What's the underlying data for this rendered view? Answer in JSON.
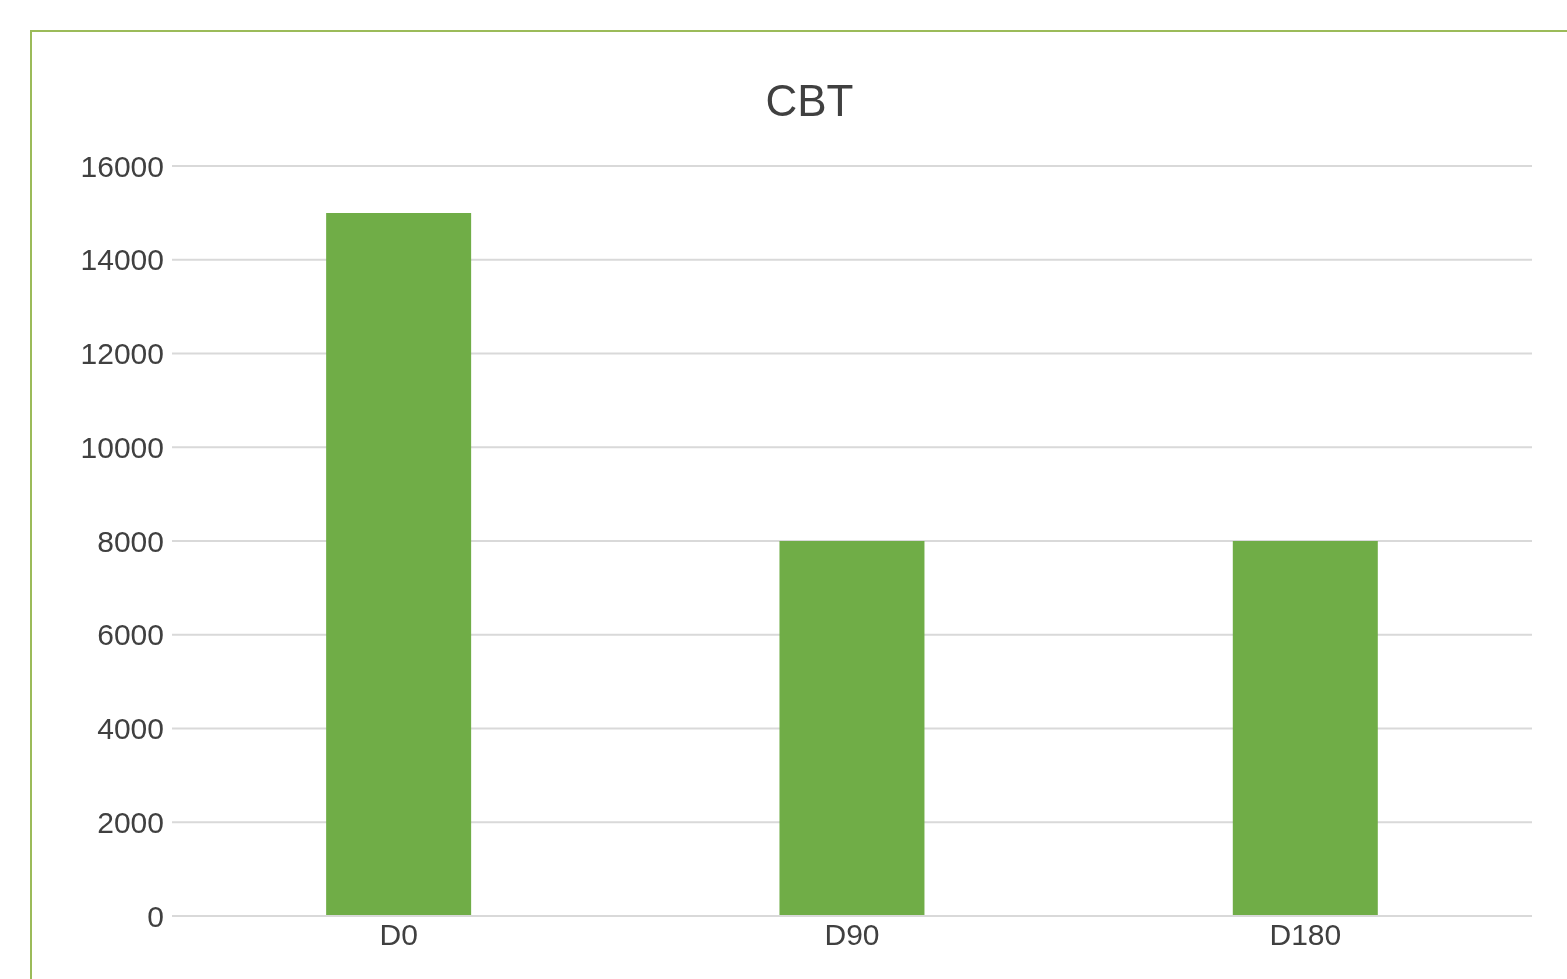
{
  "chart_data": {
    "type": "bar",
    "title": "CBT",
    "categories": [
      "D0",
      "D90",
      "D180"
    ],
    "values": [
      15000,
      8000,
      8000
    ],
    "color": "#70ad47",
    "ylim": [
      0,
      16000
    ],
    "yticks": [
      0,
      2000,
      4000,
      6000,
      8000,
      10000,
      12000,
      14000,
      16000
    ],
    "grid": "y"
  }
}
